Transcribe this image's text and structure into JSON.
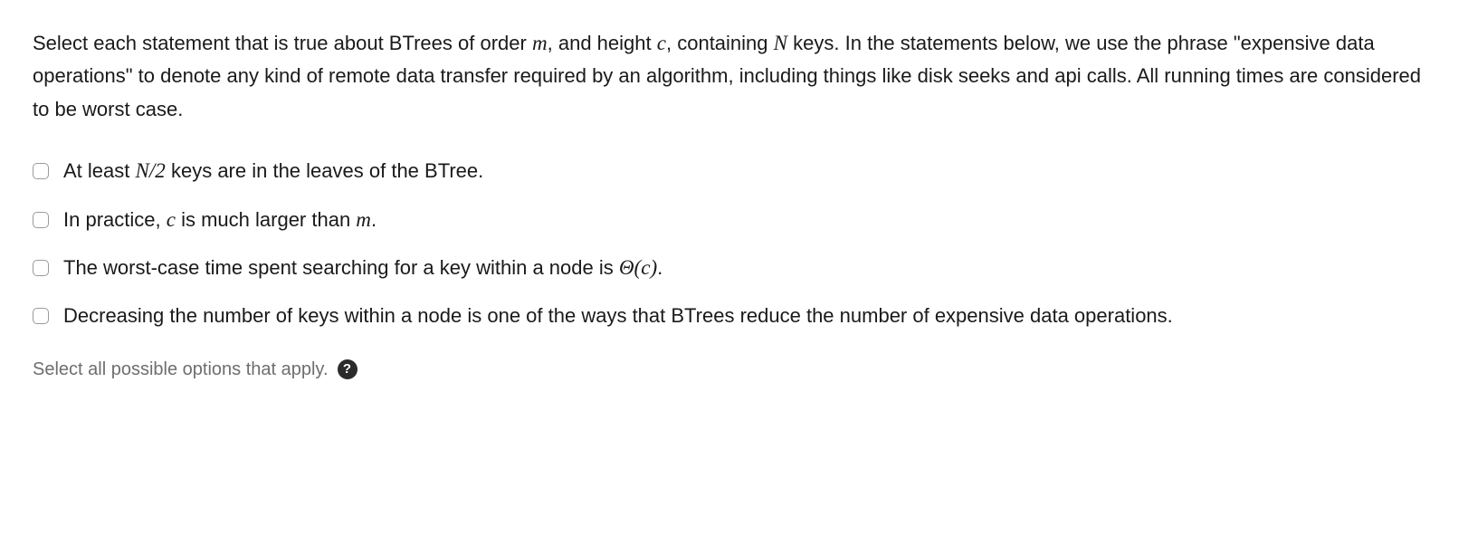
{
  "question": {
    "pre_m": "Select each statement that is true about BTrees of order ",
    "var_m": "m",
    "between_m_c": ", and height ",
    "var_c": "c",
    "between_c_N": ", containing ",
    "var_N": "N",
    "post_N": " keys. In the statements below, we use the phrase \"expensive data operations\" to denote any kind of remote data transfer required by an algorithm, including things like disk seeks and api calls. All running times are considered to be worst case."
  },
  "options": [
    {
      "id": "opt-1",
      "parts": {
        "pre": "At least ",
        "math": "N/2",
        "post": " keys are in the leaves of the BTree."
      }
    },
    {
      "id": "opt-2",
      "parts": {
        "pre": "In practice, ",
        "math1": "c",
        "mid": " is much larger than ",
        "math2": "m",
        "post": "."
      }
    },
    {
      "id": "opt-3",
      "parts": {
        "pre": "The worst-case time spent searching for a key within a node is ",
        "math": "Θ(c)",
        "post": "."
      }
    },
    {
      "id": "opt-4",
      "parts": {
        "pre": "Decreasing the number of keys within a node is one of the ways that BTrees reduce the number of expensive data operations."
      }
    }
  ],
  "hint": {
    "text": "Select all possible options that apply.",
    "help_symbol": "?"
  },
  "styles": {
    "text_color": "#1a1a1a",
    "hint_color": "#6e6e6e",
    "checkbox_border": "#9a9a9a",
    "background": "#ffffff",
    "help_bg": "#2b2b2b",
    "font_size_body": 22,
    "font_size_hint": 20
  }
}
